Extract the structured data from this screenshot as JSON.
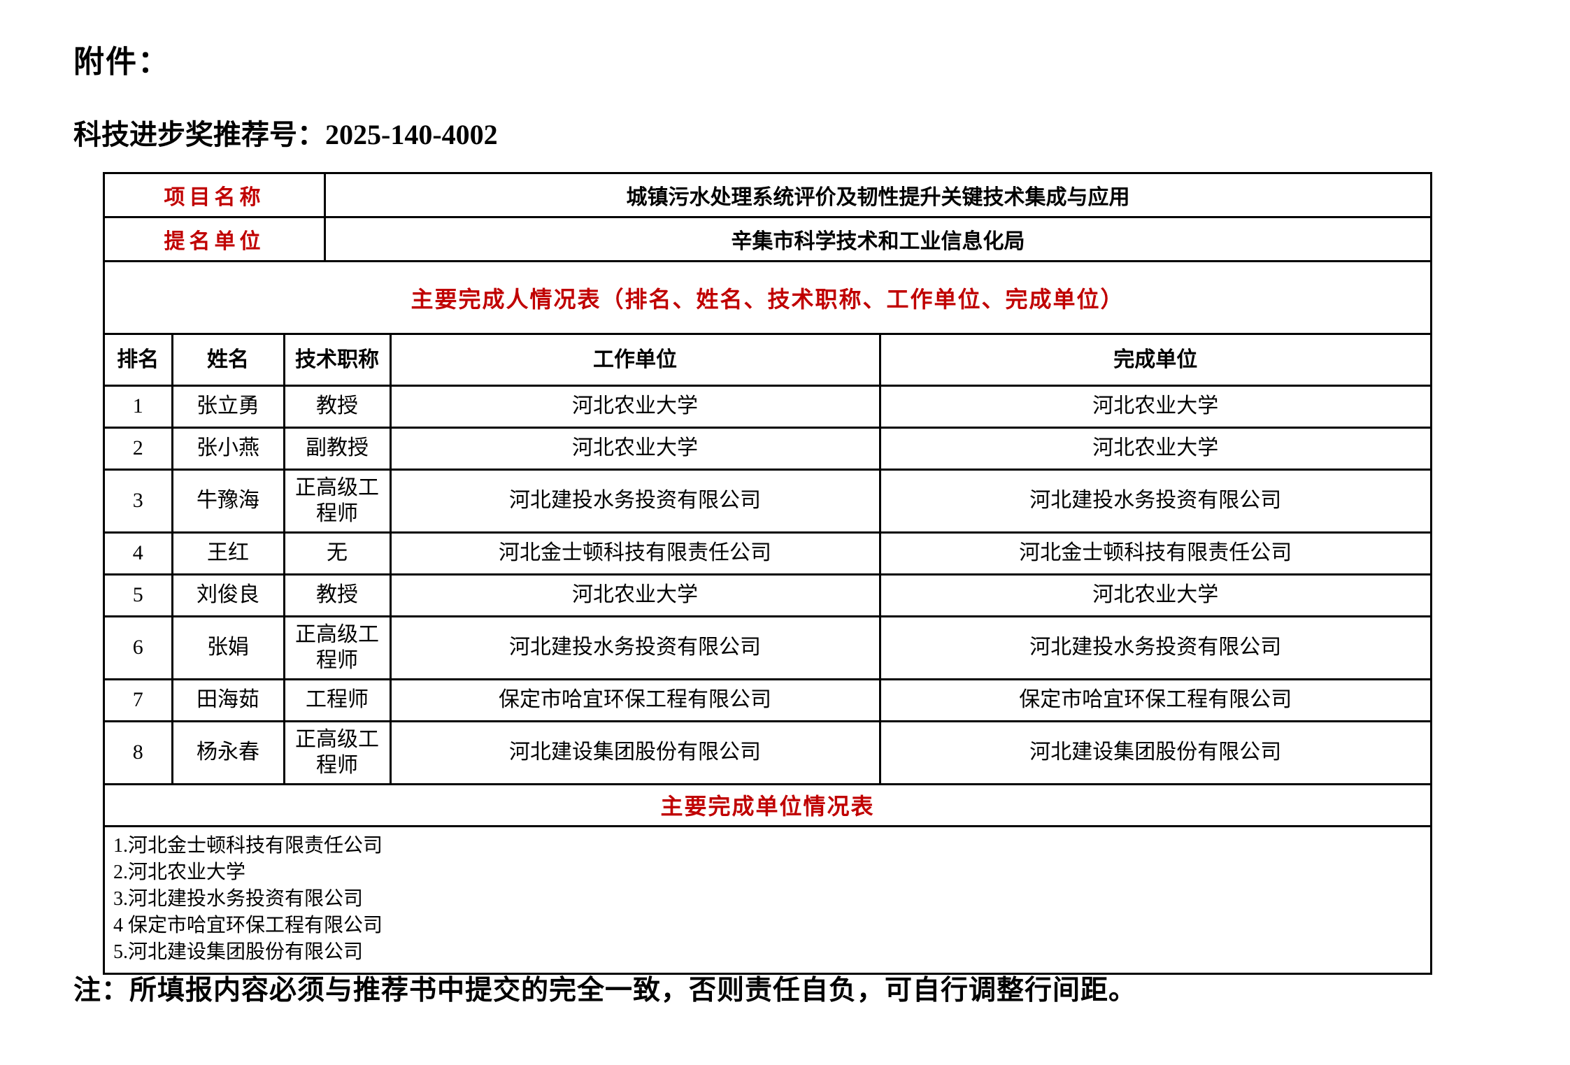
{
  "colors": {
    "accent_red": "#c00000",
    "border": "#000000"
  },
  "page": {
    "attachment_label": "附件：",
    "recommendation_label": "科技进步奖推荐号：",
    "recommendation_number": "2025-140-4002",
    "footer_note": "注：所填报内容必须与推荐书中提交的完全一致，否则责任自负，可自行调整行间距。"
  },
  "info_table": {
    "rows": [
      {
        "label": "项目名称",
        "value": "城镇污水处理系统评价及韧性提升关键技术集成与应用"
      },
      {
        "label": "提名单位",
        "value": "辛集市科学技术和工业信息化局"
      }
    ]
  },
  "person_table": {
    "title": "主要完成人情况表（排名、姓名、技术职称、工作单位、完成单位）",
    "headers": [
      "排名",
      "姓名",
      "技术职称",
      "工作单位",
      "完成单位"
    ],
    "rows": [
      {
        "rank": "1",
        "name": "张立勇",
        "tech_title": "教授",
        "work_unit": "河北农业大学",
        "completion_unit": "河北农业大学"
      },
      {
        "rank": "2",
        "name": "张小燕",
        "tech_title": "副教授",
        "work_unit": "河北农业大学",
        "completion_unit": "河北农业大学"
      },
      {
        "rank": "3",
        "name": "牛豫海",
        "tech_title": "正高级工程师",
        "work_unit": "河北建投水务投资有限公司",
        "completion_unit": "河北建投水务投资有限公司"
      },
      {
        "rank": "4",
        "name": "王红",
        "tech_title": "无",
        "work_unit": "河北金士顿科技有限责任公司",
        "completion_unit": "河北金士顿科技有限责任公司"
      },
      {
        "rank": "5",
        "name": "刘俊良",
        "tech_title": "教授",
        "work_unit": "河北农业大学",
        "completion_unit": "河北农业大学"
      },
      {
        "rank": "6",
        "name": "张娟",
        "tech_title": "正高级工程师",
        "work_unit": "河北建投水务投资有限公司",
        "completion_unit": "河北建投水务投资有限公司"
      },
      {
        "rank": "7",
        "name": "田海茹",
        "tech_title": "工程师",
        "work_unit": "保定市哈宜环保工程有限公司",
        "completion_unit": "保定市哈宜环保工程有限公司"
      },
      {
        "rank": "8",
        "name": "杨永春",
        "tech_title": "正高级工程师",
        "work_unit": "河北建设集团股份有限公司",
        "completion_unit": "河北建设集团股份有限公司"
      }
    ]
  },
  "unit_table": {
    "title": "主要完成单位情况表",
    "items": [
      "1.河北金士顿科技有限责任公司",
      "2.河北农业大学",
      "3.河北建投水务投资有限公司",
      "4 保定市哈宜环保工程有限公司",
      "5.河北建设集团股份有限公司"
    ]
  }
}
